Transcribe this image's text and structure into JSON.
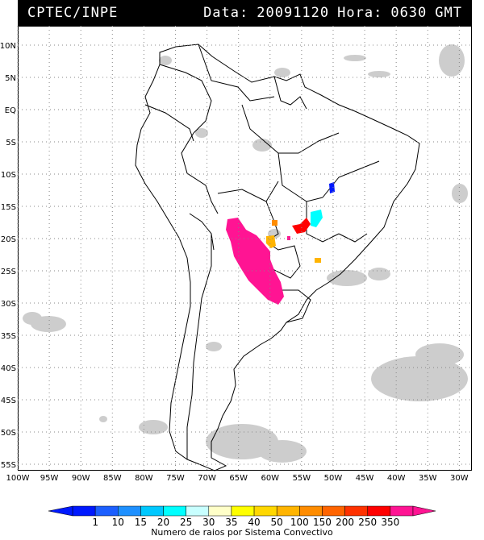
{
  "header": {
    "organization": "CPTEC/INPE",
    "data_label": "Data:",
    "date_value": "20091120",
    "hora_label": "Hora:",
    "time_value": "0630",
    "timezone": "GMT"
  },
  "map": {
    "lat_ticks": [
      "10N",
      "5N",
      "EQ",
      "5S",
      "10S",
      "15S",
      "20S",
      "25S",
      "30S",
      "35S",
      "40S",
      "45S",
      "50S",
      "55S"
    ],
    "lon_ticks": [
      "100W",
      "95W",
      "90W",
      "85W",
      "80W",
      "75W",
      "70W",
      "65W",
      "60W",
      "55W",
      "50W",
      "45W",
      "40W",
      "35W",
      "30W"
    ],
    "lat_values": [
      10,
      5,
      0,
      -5,
      -10,
      -15,
      -20,
      -25,
      -30,
      -35,
      -40,
      -45,
      -50,
      -55
    ],
    "lon_values": [
      -100,
      -95,
      -90,
      -85,
      -80,
      -75,
      -70,
      -65,
      -60,
      -55,
      -50,
      -45,
      -40,
      -35,
      -30
    ],
    "extent": {
      "lon_min": -100,
      "lon_max": -28,
      "lat_min": -56,
      "lat_max": 13
    }
  },
  "legend": {
    "title": "Numero de raios por Sistema Convectivo",
    "labels": [
      "1",
      "10",
      "15",
      "20",
      "25",
      "30",
      "35",
      "40",
      "50",
      "100",
      "150",
      "200",
      "250",
      "350"
    ],
    "colors": [
      "#0019ff",
      "#1c5fff",
      "#1e90ff",
      "#00c8ff",
      "#00ffff",
      "#c8ffff",
      "#ffffc8",
      "#ffff00",
      "#ffd700",
      "#ffb400",
      "#ff8c00",
      "#ff6400",
      "#ff3200",
      "#ff0000",
      "#ff1493"
    ]
  }
}
